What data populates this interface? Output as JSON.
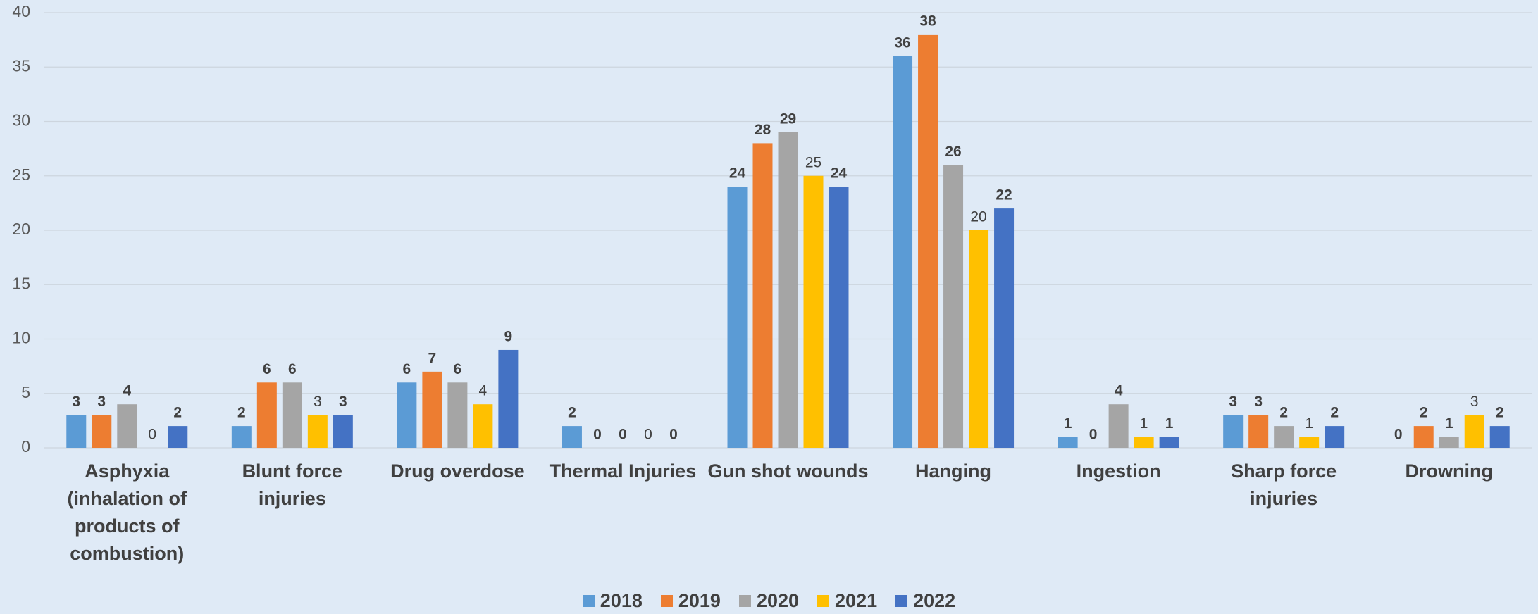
{
  "chart_data": {
    "type": "bar",
    "categories": [
      "Asphyxia (inhalation of products of combustion)",
      "Blunt force injuries",
      "Drug overdose",
      "Thermal Injuries",
      "Gun shot wounds",
      "Hanging",
      "Ingestion",
      "Sharp force injuries",
      "Drowning"
    ],
    "series": [
      {
        "name": "2018",
        "color": "#5b9bd5",
        "values": [
          3,
          2,
          6,
          2,
          24,
          36,
          1,
          3,
          0
        ]
      },
      {
        "name": "2019",
        "color": "#ed7d31",
        "values": [
          3,
          6,
          7,
          0,
          28,
          38,
          0,
          3,
          2
        ]
      },
      {
        "name": "2020",
        "color": "#a5a5a5",
        "values": [
          4,
          6,
          6,
          0,
          29,
          26,
          4,
          2,
          1
        ]
      },
      {
        "name": "2021",
        "color": "#ffc000",
        "values": [
          0,
          3,
          4,
          0,
          25,
          20,
          1,
          1,
          3
        ]
      },
      {
        "name": "2022",
        "color": "#4472c4",
        "values": [
          2,
          3,
          9,
          0,
          24,
          22,
          1,
          2,
          2
        ]
      }
    ],
    "ylim": [
      0,
      40
    ],
    "yticks": [
      0,
      5,
      10,
      15,
      20,
      25,
      30,
      35,
      40
    ],
    "grid": true,
    "legend": "bottom"
  }
}
